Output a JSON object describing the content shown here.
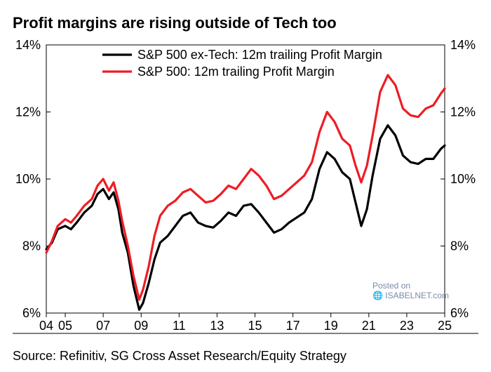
{
  "title": "Profit margins are rising outside of Tech too",
  "title_fontsize": 22,
  "source": "Source: Refinitiv, SG Cross Asset Research/Equity Strategy",
  "source_fontsize": 18,
  "watermark_line1": "Posted on",
  "watermark_line2": "ISABELNET.com",
  "chart": {
    "type": "line",
    "background_color": "#ffffff",
    "border_color": "#000000",
    "grid_visible": false,
    "xlim": [
      2004,
      2025
    ],
    "ylim": [
      6,
      14
    ],
    "ytick_step": 2,
    "y_unit": "%",
    "xticks": [
      2004,
      2005,
      2007,
      2009,
      2011,
      2013,
      2015,
      2017,
      2019,
      2021,
      2023,
      2025
    ],
    "xtick_labels": [
      "04",
      "05",
      "07",
      "09",
      "11",
      "13",
      "15",
      "17",
      "19",
      "21",
      "23",
      "25"
    ],
    "axis_fontsize": 18,
    "axis_color": "#000000",
    "right_axis": true,
    "legend": {
      "fontsize": 18,
      "items": [
        {
          "label": "S&P 500 ex-Tech: 12m trailing Profit Margin",
          "color": "#000000"
        },
        {
          "label": "S&P 500: 12m trailing Profit Margin",
          "color": "#ee1c25"
        }
      ]
    },
    "line_width": 3.2,
    "series": [
      {
        "name": "sp500_ex_tech",
        "color": "#000000",
        "points": [
          [
            2004.0,
            7.9
          ],
          [
            2004.3,
            8.1
          ],
          [
            2004.6,
            8.5
          ],
          [
            2005.0,
            8.6
          ],
          [
            2005.3,
            8.5
          ],
          [
            2005.6,
            8.7
          ],
          [
            2006.0,
            9.0
          ],
          [
            2006.4,
            9.2
          ],
          [
            2006.7,
            9.55
          ],
          [
            2007.0,
            9.7
          ],
          [
            2007.3,
            9.4
          ],
          [
            2007.55,
            9.6
          ],
          [
            2007.8,
            9.1
          ],
          [
            2008.0,
            8.4
          ],
          [
            2008.3,
            7.8
          ],
          [
            2008.6,
            6.8
          ],
          [
            2008.9,
            6.1
          ],
          [
            2009.1,
            6.3
          ],
          [
            2009.4,
            6.9
          ],
          [
            2009.7,
            7.6
          ],
          [
            2010.0,
            8.1
          ],
          [
            2010.4,
            8.3
          ],
          [
            2010.8,
            8.6
          ],
          [
            2011.2,
            8.9
          ],
          [
            2011.6,
            9.0
          ],
          [
            2012.0,
            8.7
          ],
          [
            2012.4,
            8.6
          ],
          [
            2012.8,
            8.55
          ],
          [
            2013.2,
            8.75
          ],
          [
            2013.6,
            9.0
          ],
          [
            2014.0,
            8.9
          ],
          [
            2014.4,
            9.2
          ],
          [
            2014.8,
            9.25
          ],
          [
            2015.2,
            9.0
          ],
          [
            2015.6,
            8.7
          ],
          [
            2016.0,
            8.4
          ],
          [
            2016.4,
            8.5
          ],
          [
            2016.8,
            8.7
          ],
          [
            2017.2,
            8.85
          ],
          [
            2017.6,
            9.0
          ],
          [
            2018.0,
            9.4
          ],
          [
            2018.4,
            10.3
          ],
          [
            2018.8,
            10.8
          ],
          [
            2019.2,
            10.6
          ],
          [
            2019.6,
            10.2
          ],
          [
            2020.0,
            10.0
          ],
          [
            2020.3,
            9.3
          ],
          [
            2020.6,
            8.6
          ],
          [
            2020.9,
            9.1
          ],
          [
            2021.2,
            10.1
          ],
          [
            2021.6,
            11.2
          ],
          [
            2022.0,
            11.6
          ],
          [
            2022.4,
            11.3
          ],
          [
            2022.8,
            10.7
          ],
          [
            2023.2,
            10.5
          ],
          [
            2023.6,
            10.45
          ],
          [
            2024.0,
            10.6
          ],
          [
            2024.4,
            10.6
          ],
          [
            2024.8,
            10.9
          ],
          [
            2025.0,
            11.0
          ]
        ]
      },
      {
        "name": "sp500",
        "color": "#ee1c25",
        "points": [
          [
            2004.0,
            7.8
          ],
          [
            2004.3,
            8.15
          ],
          [
            2004.6,
            8.6
          ],
          [
            2005.0,
            8.8
          ],
          [
            2005.3,
            8.7
          ],
          [
            2005.6,
            8.9
          ],
          [
            2006.0,
            9.2
          ],
          [
            2006.4,
            9.4
          ],
          [
            2006.7,
            9.8
          ],
          [
            2007.0,
            10.0
          ],
          [
            2007.3,
            9.65
          ],
          [
            2007.55,
            9.9
          ],
          [
            2007.8,
            9.35
          ],
          [
            2008.0,
            8.75
          ],
          [
            2008.3,
            8.0
          ],
          [
            2008.6,
            7.1
          ],
          [
            2008.9,
            6.4
          ],
          [
            2009.1,
            6.7
          ],
          [
            2009.4,
            7.4
          ],
          [
            2009.7,
            8.3
          ],
          [
            2010.0,
            8.9
          ],
          [
            2010.4,
            9.2
          ],
          [
            2010.8,
            9.35
          ],
          [
            2011.2,
            9.6
          ],
          [
            2011.6,
            9.7
          ],
          [
            2012.0,
            9.5
          ],
          [
            2012.4,
            9.3
          ],
          [
            2012.8,
            9.35
          ],
          [
            2013.2,
            9.55
          ],
          [
            2013.6,
            9.8
          ],
          [
            2014.0,
            9.7
          ],
          [
            2014.4,
            10.0
          ],
          [
            2014.8,
            10.3
          ],
          [
            2015.2,
            10.1
          ],
          [
            2015.6,
            9.8
          ],
          [
            2016.0,
            9.4
          ],
          [
            2016.4,
            9.5
          ],
          [
            2016.8,
            9.7
          ],
          [
            2017.2,
            9.9
          ],
          [
            2017.6,
            10.1
          ],
          [
            2018.0,
            10.5
          ],
          [
            2018.4,
            11.4
          ],
          [
            2018.8,
            12.0
          ],
          [
            2019.2,
            11.7
          ],
          [
            2019.6,
            11.2
          ],
          [
            2020.0,
            11.0
          ],
          [
            2020.3,
            10.4
          ],
          [
            2020.6,
            9.9
          ],
          [
            2020.9,
            10.4
          ],
          [
            2021.2,
            11.3
          ],
          [
            2021.6,
            12.6
          ],
          [
            2022.0,
            13.1
          ],
          [
            2022.4,
            12.8
          ],
          [
            2022.8,
            12.1
          ],
          [
            2023.2,
            11.9
          ],
          [
            2023.6,
            11.85
          ],
          [
            2024.0,
            12.1
          ],
          [
            2024.4,
            12.2
          ],
          [
            2024.8,
            12.55
          ],
          [
            2025.0,
            12.7
          ]
        ]
      }
    ]
  }
}
